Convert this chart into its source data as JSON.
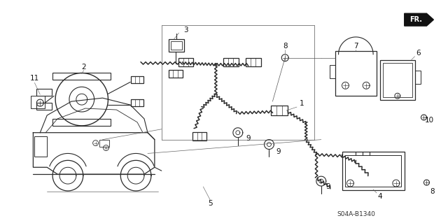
{
  "background_color": "#ffffff",
  "figsize": [
    6.4,
    3.19
  ],
  "dpi": 100,
  "diagram_code": "S04A-B1340",
  "line_color": "#2a2a2a",
  "label_color": "#111111",
  "font_size": 7.5,
  "fr_fontsize": 8
}
